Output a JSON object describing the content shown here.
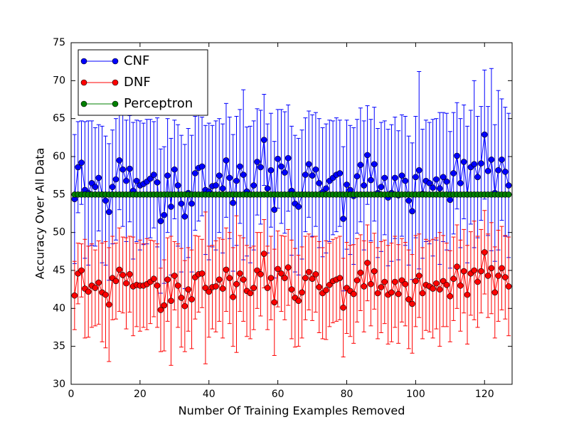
{
  "chart_data": {
    "type": "errorbar-line",
    "xlabel": "Number Of Training Examples Removed",
    "ylabel": "Accuracy Over All Data",
    "xlim": [
      0,
      128
    ],
    "xticks": [
      0,
      20,
      40,
      60,
      80,
      100,
      120
    ],
    "ylim": [
      30,
      75
    ],
    "yticks": [
      30,
      35,
      40,
      45,
      50,
      55,
      60,
      65,
      70,
      75
    ],
    "legend": "upper left",
    "x": [
      1,
      2,
      3,
      4,
      5,
      6,
      7,
      8,
      9,
      10,
      11,
      12,
      13,
      14,
      15,
      16,
      17,
      18,
      19,
      20,
      21,
      22,
      23,
      24,
      25,
      26,
      27,
      28,
      29,
      30,
      31,
      32,
      33,
      34,
      35,
      36,
      37,
      38,
      39,
      40,
      41,
      42,
      43,
      44,
      45,
      46,
      47,
      48,
      49,
      50,
      51,
      52,
      53,
      54,
      55,
      56,
      57,
      58,
      59,
      60,
      61,
      62,
      63,
      64,
      65,
      66,
      67,
      68,
      69,
      70,
      71,
      72,
      73,
      74,
      75,
      76,
      77,
      78,
      79,
      80,
      81,
      82,
      83,
      84,
      85,
      86,
      87,
      88,
      89,
      90,
      91,
      92,
      93,
      94,
      95,
      96,
      97,
      98,
      99,
      100,
      101,
      102,
      103,
      104,
      105,
      106,
      107,
      108,
      109,
      110,
      111,
      112,
      113,
      114,
      115,
      116,
      117,
      118,
      119,
      120,
      121,
      122,
      123,
      124,
      125,
      126,
      127
    ],
    "series": [
      {
        "name": "CNF",
        "color": "#0000ff",
        "values": [
          54.4,
          58.6,
          59.2,
          55.6,
          55.2,
          56.5,
          56.0,
          57.2,
          55.0,
          54.2,
          52.7,
          56.0,
          57.0,
          59.5,
          58.3,
          56.8,
          58.4,
          55.5,
          56.8,
          56.2,
          56.4,
          56.7,
          57.1,
          57.6,
          56.6,
          51.5,
          52.3,
          57.5,
          53.4,
          58.3,
          56.2,
          53.8,
          52.1,
          55.2,
          53.8,
          57.8,
          58.5,
          58.7,
          55.6,
          55.4,
          56.1,
          56.2,
          57.5,
          55.8,
          59.5,
          57.2,
          53.9,
          56.8,
          58.7,
          57.6,
          55.4,
          55.0,
          56.2,
          59.3,
          58.6,
          62.2,
          55.8,
          58.2,
          53.0,
          59.7,
          58.7,
          57.9,
          59.8,
          55.5,
          53.8,
          53.4,
          55.0,
          57.6,
          59.0,
          57.5,
          58.3,
          56.5,
          55.3,
          55.8,
          56.8,
          57.2,
          57.6,
          57.8,
          51.8,
          56.3,
          55.6,
          54.8,
          57.4,
          58.9,
          56.2,
          60.2,
          56.9,
          59.0,
          55.2,
          56.0,
          57.2,
          54.6,
          55.2,
          57.2,
          54.9,
          57.5,
          56.8,
          54.2,
          52.8,
          57.3,
          58.2,
          55.1,
          56.8,
          56.5,
          55.9,
          57.0,
          55.8,
          57.3,
          56.7,
          54.3,
          57.8,
          60.1,
          56.5,
          59.3,
          55.0,
          58.6,
          59.0,
          57.3,
          59.1,
          62.9,
          58.1,
          59.6,
          55.2,
          58.2,
          59.6,
          58.0,
          56.2
        ],
        "errors": [
          8.5,
          6.0,
          5.5,
          9.0,
          9.5,
          8.2,
          7.8,
          7.0,
          9.0,
          8.5,
          9.0,
          7.5,
          8.0,
          6.5,
          7.5,
          8.0,
          7.0,
          9.0,
          8.0,
          8.5,
          8.0,
          8.2,
          7.8,
          7.0,
          8.5,
          9.5,
          9.0,
          7.5,
          9.0,
          6.5,
          8.0,
          9.0,
          9.5,
          8.5,
          9.0,
          7.5,
          7.0,
          6.5,
          8.5,
          9.0,
          8.0,
          8.5,
          7.5,
          8.5,
          7.5,
          8.0,
          9.0,
          8.5,
          7.5,
          11.2,
          8.5,
          9.0,
          8.5,
          7.0,
          7.5,
          6.0,
          8.5,
          7.5,
          9.0,
          6.5,
          7.5,
          8.0,
          7.0,
          8.5,
          9.0,
          9.0,
          8.5,
          7.5,
          7.0,
          8.0,
          7.5,
          8.5,
          8.5,
          8.5,
          8.0,
          7.5,
          7.5,
          7.0,
          9.5,
          8.5,
          8.5,
          9.0,
          7.5,
          7.5,
          8.5,
          6.5,
          8.0,
          7.5,
          8.5,
          8.5,
          7.5,
          9.0,
          9.0,
          8.0,
          8.5,
          8.0,
          8.5,
          8.5,
          9.0,
          8.0,
          13.0,
          8.5,
          8.0,
          8.0,
          9.0,
          8.0,
          10.0,
          8.5,
          9.0,
          9.0,
          8.0,
          7.0,
          8.5,
          7.5,
          9.0,
          7.5,
          11.0,
          8.0,
          7.5,
          8.5,
          8.5,
          12.0,
          9.0,
          10.5,
          8.0,
          8.5,
          9.5
        ]
      },
      {
        "name": "DNF",
        "color": "#ff0000",
        "values": [
          41.7,
          44.6,
          45.0,
          42.6,
          42.2,
          43.0,
          42.7,
          43.4,
          42.1,
          41.8,
          40.5,
          44.0,
          43.6,
          45.1,
          44.4,
          43.3,
          44.5,
          42.9,
          43.1,
          43.0,
          43.0,
          43.2,
          43.5,
          43.9,
          43.0,
          39.8,
          40.4,
          43.8,
          41.0,
          44.3,
          43.0,
          41.4,
          40.3,
          42.5,
          41.2,
          44.1,
          44.5,
          44.6,
          42.7,
          42.2,
          42.8,
          42.9,
          43.8,
          42.6,
          45.1,
          44.0,
          41.5,
          43.2,
          44.6,
          43.8,
          42.3,
          42.0,
          42.7,
          45.0,
          44.5,
          47.2,
          42.7,
          44.0,
          40.8,
          45.2,
          44.6,
          44.0,
          45.4,
          42.5,
          41.4,
          41.0,
          42.1,
          44.0,
          44.8,
          43.9,
          44.5,
          42.8,
          42.0,
          42.4,
          43.1,
          43.6,
          43.8,
          44.0,
          40.1,
          42.7,
          42.3,
          41.9,
          43.7,
          44.7,
          42.9,
          46.0,
          43.2,
          44.9,
          42.0,
          42.8,
          43.5,
          41.8,
          42.1,
          43.5,
          41.9,
          43.7,
          43.2,
          41.2,
          40.6,
          43.6,
          44.3,
          42.0,
          43.1,
          42.9,
          42.6,
          43.3,
          42.5,
          43.6,
          43.1,
          41.6,
          43.9,
          45.5,
          43.0,
          44.9,
          41.8,
          44.6,
          45.0,
          43.5,
          44.9,
          47.4,
          44.3,
          45.3,
          42.1,
          44.3,
          45.3,
          44.1,
          42.9
        ],
        "errors": [
          4.5,
          4.0,
          3.5,
          6.5,
          6.0,
          5.5,
          5.0,
          5.5,
          6.5,
          7.0,
          7.5,
          5.5,
          5.0,
          5.5,
          5.0,
          6.0,
          5.0,
          6.5,
          5.5,
          6.0,
          5.5,
          6.0,
          5.5,
          5.0,
          5.5,
          5.5,
          6.0,
          5.5,
          8.5,
          4.5,
          5.5,
          6.5,
          6.0,
          5.5,
          6.5,
          5.5,
          5.0,
          4.5,
          10.0,
          6.0,
          5.5,
          6.0,
          5.5,
          6.5,
          5.5,
          6.0,
          6.5,
          9.0,
          5.0,
          5.5,
          6.0,
          6.0,
          5.5,
          5.0,
          5.5,
          4.5,
          5.5,
          5.5,
          7.0,
          5.0,
          5.0,
          5.5,
          5.0,
          6.5,
          6.5,
          6.0,
          6.0,
          5.5,
          5.0,
          5.5,
          5.0,
          6.0,
          6.0,
          6.5,
          5.5,
          5.5,
          5.5,
          5.5,
          6.5,
          6.0,
          6.0,
          6.5,
          5.5,
          5.0,
          6.0,
          5.0,
          5.5,
          5.0,
          6.0,
          6.0,
          5.5,
          6.5,
          6.5,
          6.0,
          6.5,
          5.5,
          5.5,
          6.5,
          6.5,
          6.0,
          5.5,
          6.0,
          6.0,
          6.0,
          6.5,
          6.0,
          7.5,
          6.0,
          5.5,
          6.0,
          5.5,
          5.5,
          6.0,
          5.5,
          6.5,
          5.5,
          6.5,
          6.0,
          5.5,
          5.5,
          5.5,
          6.0,
          6.0,
          6.0,
          5.5,
          5.5,
          6.5
        ]
      },
      {
        "name": "Perceptron",
        "color": "#008000",
        "values": [
          55,
          55,
          55,
          55,
          55,
          55,
          55,
          55,
          55,
          55,
          55,
          55,
          55,
          55,
          55,
          55,
          55,
          55,
          55,
          55,
          55,
          55,
          55,
          55,
          55,
          55,
          55,
          55,
          55,
          55,
          55,
          55,
          55,
          55,
          55,
          55,
          55,
          55,
          55,
          55,
          55,
          55,
          55,
          55,
          55,
          55,
          55,
          55,
          55,
          55,
          55,
          55,
          55,
          55,
          55,
          55,
          55,
          55,
          55,
          55,
          55,
          55,
          55,
          55,
          55,
          55,
          55,
          55,
          55,
          55,
          55,
          55,
          55,
          55,
          55,
          55,
          55,
          55,
          55,
          55,
          55,
          55,
          55,
          55,
          55,
          55,
          55,
          55,
          55,
          55,
          55,
          55,
          55,
          55,
          55,
          55,
          55,
          55,
          55,
          55,
          55,
          55,
          55,
          55,
          55,
          55,
          55,
          55,
          55,
          55,
          55,
          55,
          55,
          55,
          55,
          55,
          55,
          55,
          55,
          55,
          55,
          55,
          55,
          55,
          55,
          55,
          55
        ]
      }
    ]
  }
}
